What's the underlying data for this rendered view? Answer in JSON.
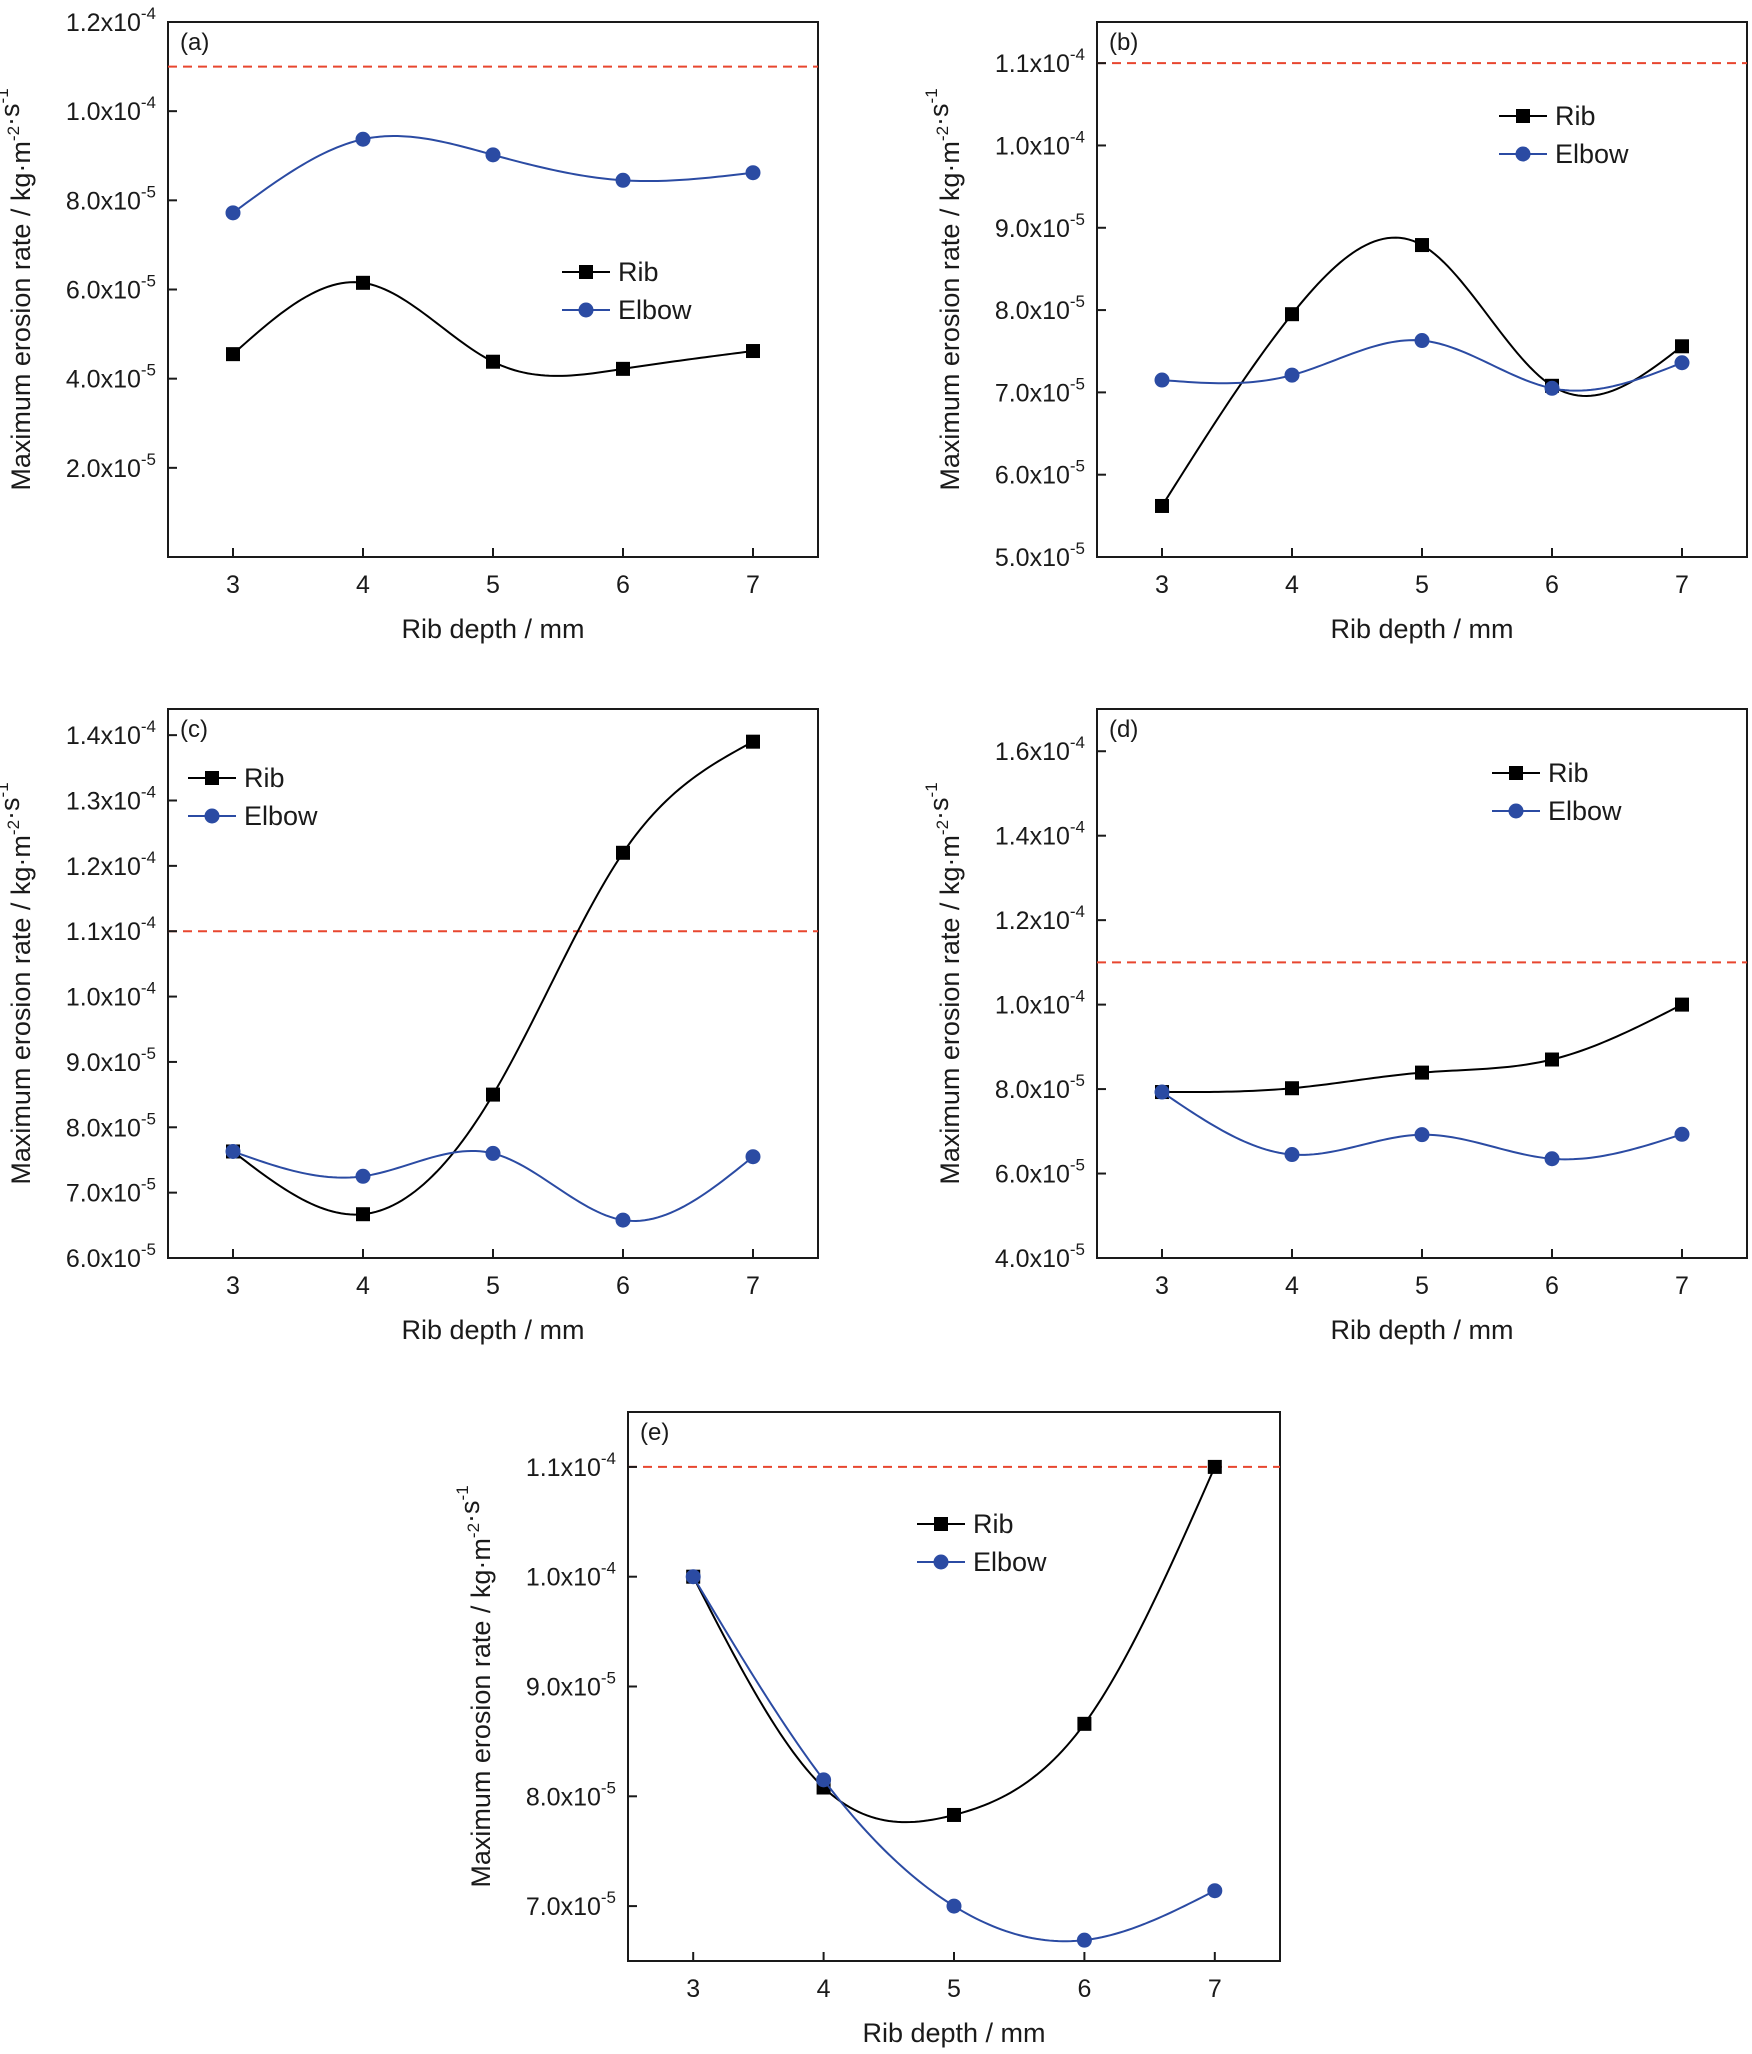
{
  "colors": {
    "rib": "#000000",
    "elbow": "#2b4ba3",
    "reference": "#e8462f",
    "axis": "#1a1a1a"
  },
  "legend": {
    "rib": "Rib",
    "elbow": "Elbow"
  },
  "chart_data": [
    {
      "type": "line",
      "panel": "(a)",
      "xlabel": "Rib depth / mm",
      "ylabel": "Maximum erosion rate / kg·m-2·s-1",
      "x": [
        3,
        4,
        5,
        6,
        7
      ],
      "xlim": [
        2.5,
        7.5
      ],
      "ylim": [
        0,
        0.00012
      ],
      "yticks": [
        2e-05,
        4e-05,
        6e-05,
        8e-05,
        0.0001,
        0.00012
      ],
      "ytick_labels": [
        [
          "2.0x10",
          "-5"
        ],
        [
          "4.0x10",
          "-5"
        ],
        [
          "6.0x10",
          "-5"
        ],
        [
          "8.0x10",
          "-5"
        ],
        [
          "1.0x10",
          "-4"
        ],
        [
          "1.2x10",
          "-4"
        ]
      ],
      "reference_line": 0.00011,
      "legend_position": "center-right",
      "series": [
        {
          "name": "Rib",
          "values": [
            4.55e-05,
            6.15e-05,
            4.38e-05,
            4.22e-05,
            4.62e-05
          ]
        },
        {
          "name": "Elbow",
          "values": [
            7.72e-05,
            9.37e-05,
            9.02e-05,
            8.45e-05,
            8.62e-05
          ]
        }
      ]
    },
    {
      "type": "line",
      "panel": "(b)",
      "xlabel": "Rib depth / mm",
      "ylabel": "Maximum erosion rate / kg·m-2·s-1",
      "x": [
        3,
        4,
        5,
        6,
        7
      ],
      "xlim": [
        2.5,
        7.5
      ],
      "ylim": [
        5e-05,
        0.000115
      ],
      "yticks": [
        5e-05,
        6e-05,
        7e-05,
        8e-05,
        9e-05,
        0.0001,
        0.00011
      ],
      "ytick_labels": [
        [
          "5.0x10",
          "-5"
        ],
        [
          "6.0x10",
          "-5"
        ],
        [
          "7.0x10",
          "-5"
        ],
        [
          "8.0x10",
          "-5"
        ],
        [
          "9.0x10",
          "-5"
        ],
        [
          "1.0x10",
          "-4"
        ],
        [
          "1.1x10",
          "-4"
        ]
      ],
      "reference_line": 0.00011,
      "legend_position": "top-right",
      "series": [
        {
          "name": "Rib",
          "values": [
            5.62e-05,
            7.95e-05,
            8.79e-05,
            7.08e-05,
            7.56e-05
          ]
        },
        {
          "name": "Elbow",
          "values": [
            7.15e-05,
            7.21e-05,
            7.63e-05,
            7.05e-05,
            7.36e-05
          ]
        }
      ]
    },
    {
      "type": "line",
      "panel": "(c)",
      "xlabel": "Rib depth / mm",
      "ylabel": "Maximum erosion rate / kg·m-2·s-1",
      "x": [
        3,
        4,
        5,
        6,
        7
      ],
      "xlim": [
        2.5,
        7.5
      ],
      "ylim": [
        6e-05,
        0.000144
      ],
      "yticks": [
        6e-05,
        7e-05,
        8e-05,
        9e-05,
        0.0001,
        0.00011,
        0.00012,
        0.00013,
        0.00014
      ],
      "ytick_labels": [
        [
          "6.0x10",
          "-5"
        ],
        [
          "7.0x10",
          "-5"
        ],
        [
          "8.0x10",
          "-5"
        ],
        [
          "9.0x10",
          "-5"
        ],
        [
          "1.0x10",
          "-4"
        ],
        [
          "1.1x10",
          "-4"
        ],
        [
          "1.2x10",
          "-4"
        ],
        [
          "1.3x10",
          "-4"
        ],
        [
          "1.4x10",
          "-4"
        ]
      ],
      "reference_line": 0.00011,
      "legend_position": "top-left",
      "series": [
        {
          "name": "Rib",
          "values": [
            7.63e-05,
            6.67e-05,
            8.5e-05,
            0.000122,
            0.000139
          ]
        },
        {
          "name": "Elbow",
          "values": [
            7.63e-05,
            7.25e-05,
            7.6e-05,
            6.58e-05,
            7.55e-05
          ]
        }
      ]
    },
    {
      "type": "line",
      "panel": "(d)",
      "xlabel": "Rib depth / mm",
      "ylabel": "Maximum erosion rate / kg·m-2·s-1",
      "x": [
        3,
        4,
        5,
        6,
        7
      ],
      "xlim": [
        2.5,
        7.5
      ],
      "ylim": [
        4e-05,
        0.00017
      ],
      "yticks": [
        4e-05,
        6e-05,
        8e-05,
        0.0001,
        0.00012,
        0.00014,
        0.00016
      ],
      "ytick_labels": [
        [
          "4.0x10",
          "-5"
        ],
        [
          "6.0x10",
          "-5"
        ],
        [
          "8.0x10",
          "-5"
        ],
        [
          "1.0x10",
          "-4"
        ],
        [
          "1.2x10",
          "-4"
        ],
        [
          "1.4x10",
          "-4"
        ],
        [
          "1.6x10",
          "-4"
        ]
      ],
      "reference_line": 0.00011,
      "legend_position": "top-right",
      "series": [
        {
          "name": "Rib",
          "values": [
            7.93e-05,
            8.02e-05,
            8.39e-05,
            8.7e-05,
            0.0001
          ]
        },
        {
          "name": "Elbow",
          "values": [
            7.93e-05,
            6.45e-05,
            6.92e-05,
            6.35e-05,
            6.93e-05
          ]
        }
      ]
    },
    {
      "type": "line",
      "panel": "(e)",
      "xlabel": "Rib depth / mm",
      "ylabel": "Maximum erosion rate / kg·m-2·s-1",
      "x": [
        3,
        4,
        5,
        6,
        7
      ],
      "xlim": [
        2.5,
        7.5
      ],
      "ylim": [
        6.5e-05,
        0.000115
      ],
      "yticks": [
        7e-05,
        8e-05,
        9e-05,
        0.0001,
        0.00011
      ],
      "ytick_labels": [
        [
          "7.0x10",
          "-5"
        ],
        [
          "8.0x10",
          "-5"
        ],
        [
          "9.0x10",
          "-5"
        ],
        [
          "1.0x10",
          "-4"
        ],
        [
          "1.1x10",
          "-4"
        ]
      ],
      "reference_line": 0.00011,
      "legend_position": "top-center",
      "series": [
        {
          "name": "Rib",
          "values": [
            0.0001,
            8.08e-05,
            7.83e-05,
            8.66e-05,
            0.00011
          ]
        },
        {
          "name": "Elbow",
          "values": [
            0.0001,
            8.15e-05,
            7e-05,
            6.69e-05,
            7.14e-05
          ]
        }
      ]
    }
  ]
}
